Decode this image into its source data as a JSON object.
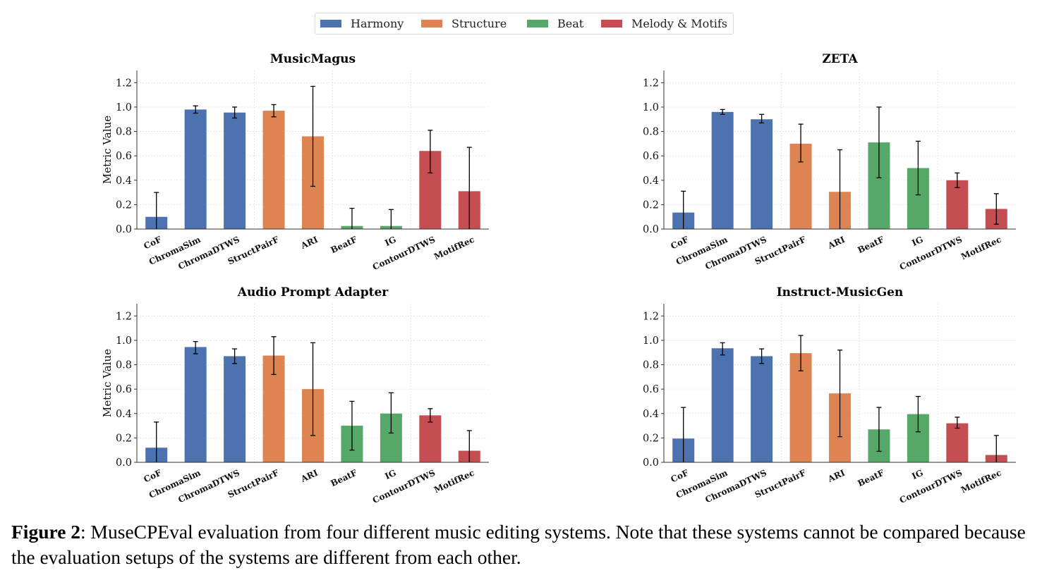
{
  "legend": [
    {
      "name": "Harmony",
      "color": "#4c72b0"
    },
    {
      "name": "Structure",
      "color": "#dd8452"
    },
    {
      "name": "Beat",
      "color": "#55a868"
    },
    {
      "name": "Melody & Motifs",
      "color": "#c44e52"
    }
  ],
  "chart_data": [
    {
      "type": "bar",
      "title": "MusicMagus",
      "ylabel": "Metric Value",
      "categories": [
        "CoF",
        "ChromaSim",
        "ChromaDTWS",
        "StructPairF",
        "ARI",
        "BeatF",
        "IG",
        "ContourDTWS",
        "MotifRec"
      ],
      "groups": [
        "Harmony",
        "Harmony",
        "Harmony",
        "Structure",
        "Structure",
        "Beat",
        "Beat",
        "Melody & Motifs",
        "Melody & Motifs"
      ],
      "values": [
        0.1,
        0.98,
        0.955,
        0.97,
        0.76,
        0.025,
        0.025,
        0.64,
        0.31
      ],
      "err_low": [
        0.0,
        0.95,
        0.91,
        0.92,
        0.35,
        0.0,
        0.0,
        0.46,
        0.0
      ],
      "err_high": [
        0.3,
        1.01,
        1.0,
        1.02,
        1.17,
        0.17,
        0.16,
        0.81,
        0.67
      ],
      "ylim": [
        0,
        1.3
      ],
      "yticks": [
        "0.0",
        "0.2",
        "0.4",
        "0.6",
        "0.8",
        "1.0",
        "1.2"
      ],
      "grid": true
    },
    {
      "type": "bar",
      "title": "ZETA",
      "ylabel": "",
      "categories": [
        "CoF",
        "ChromaSim",
        "ChromaDTWS",
        "StructPairF",
        "ARI",
        "BeatF",
        "IG",
        "ContourDTWS",
        "MotifRec"
      ],
      "groups": [
        "Harmony",
        "Harmony",
        "Harmony",
        "Structure",
        "Structure",
        "Beat",
        "Beat",
        "Melody & Motifs",
        "Melody & Motifs"
      ],
      "values": [
        0.135,
        0.96,
        0.9,
        0.7,
        0.305,
        0.71,
        0.5,
        0.4,
        0.165
      ],
      "err_low": [
        0.0,
        0.94,
        0.87,
        0.55,
        0.0,
        0.42,
        0.28,
        0.34,
        0.04
      ],
      "err_high": [
        0.31,
        0.98,
        0.94,
        0.86,
        0.65,
        1.0,
        0.72,
        0.46,
        0.29
      ],
      "ylim": [
        0,
        1.3
      ],
      "yticks": [
        "0.0",
        "0.2",
        "0.4",
        "0.6",
        "0.8",
        "1.0",
        "1.2"
      ],
      "grid": true
    },
    {
      "type": "bar",
      "title": "Audio Prompt Adapter",
      "ylabel": "Metric Value",
      "categories": [
        "CoF",
        "ChromaSim",
        "ChromaDTWS",
        "StructPairF",
        "ARI",
        "BeatF",
        "IG",
        "ContourDTWS",
        "MotifRec"
      ],
      "groups": [
        "Harmony",
        "Harmony",
        "Harmony",
        "Structure",
        "Structure",
        "Beat",
        "Beat",
        "Melody & Motifs",
        "Melody & Motifs"
      ],
      "values": [
        0.12,
        0.945,
        0.87,
        0.875,
        0.6,
        0.3,
        0.4,
        0.385,
        0.095
      ],
      "err_low": [
        0.0,
        0.89,
        0.81,
        0.72,
        0.22,
        0.1,
        0.24,
        0.33,
        0.0
      ],
      "err_high": [
        0.33,
        0.99,
        0.93,
        1.03,
        0.98,
        0.5,
        0.57,
        0.44,
        0.26
      ],
      "ylim": [
        0,
        1.3
      ],
      "yticks": [
        "0.0",
        "0.2",
        "0.4",
        "0.6",
        "0.8",
        "1.0",
        "1.2"
      ],
      "grid": true
    },
    {
      "type": "bar",
      "title": "Instruct-MusicGen",
      "ylabel": "",
      "categories": [
        "CoF",
        "ChromaSim",
        "ChromaDTWS",
        "StructPairF",
        "ARI",
        "BeatF",
        "IG",
        "ContourDTWS",
        "MotifRec"
      ],
      "groups": [
        "Harmony",
        "Harmony",
        "Harmony",
        "Structure",
        "Structure",
        "Beat",
        "Beat",
        "Melody & Motifs",
        "Melody & Motifs"
      ],
      "values": [
        0.195,
        0.935,
        0.87,
        0.895,
        0.565,
        0.27,
        0.395,
        0.32,
        0.06
      ],
      "err_low": [
        0.0,
        0.88,
        0.81,
        0.75,
        0.21,
        0.09,
        0.25,
        0.28,
        0.0
      ],
      "err_high": [
        0.45,
        0.98,
        0.93,
        1.04,
        0.92,
        0.45,
        0.54,
        0.37,
        0.22
      ],
      "ylim": [
        0,
        1.3
      ],
      "yticks": [
        "0.0",
        "0.2",
        "0.4",
        "0.6",
        "0.8",
        "1.0",
        "1.2"
      ],
      "grid": true
    }
  ],
  "caption": {
    "label": "Figure 2",
    "text": ": MuseCPEval evaluation from four different music editing systems. Note that these systems cannot be compared because the evaluation setups of the systems are different from each other."
  }
}
